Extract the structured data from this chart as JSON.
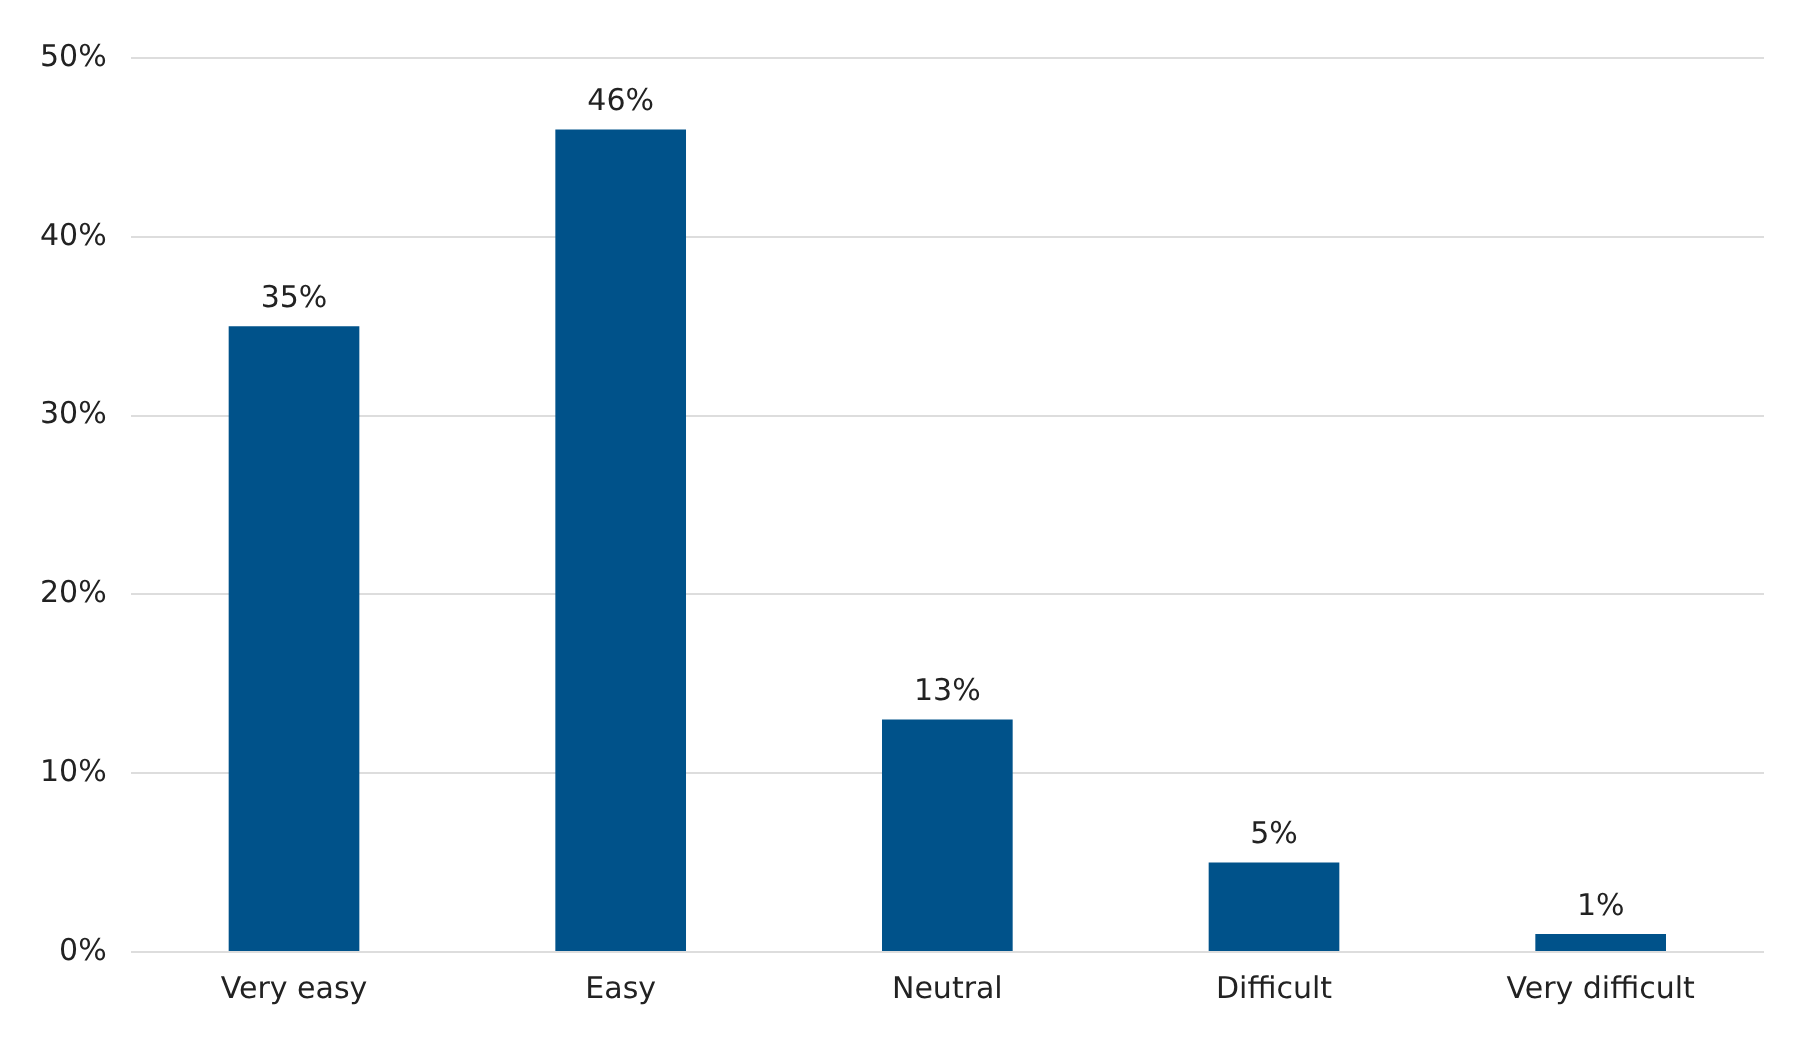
{
  "chart_data": {
    "type": "bar",
    "categories": [
      "Very easy",
      "Easy",
      "Neutral",
      "Difficult",
      "Very difficult"
    ],
    "values": [
      35,
      46,
      13,
      5,
      1
    ],
    "value_labels": [
      "35%",
      "46%",
      "13%",
      "5%",
      "1%"
    ],
    "color": "#00528a",
    "ylim": [
      0,
      50
    ],
    "yticks": [
      {
        "value": 0,
        "label": "0%"
      },
      {
        "value": 10,
        "label": "10%"
      },
      {
        "value": 20,
        "label": "20%"
      },
      {
        "value": 30,
        "label": "30%"
      },
      {
        "value": 40,
        "label": "40%"
      },
      {
        "value": 50,
        "label": "50%"
      }
    ],
    "grid": "y",
    "legend": false
  }
}
